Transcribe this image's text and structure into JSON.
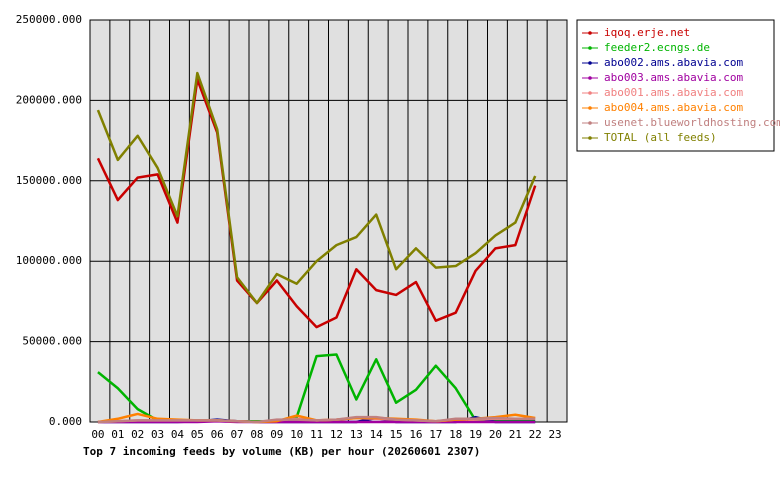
{
  "chart_data": {
    "type": "line",
    "title": "Top 7 incoming feeds by volume (KB) per hour (20260601 2307)",
    "categories": [
      "00",
      "01",
      "02",
      "03",
      "04",
      "05",
      "06",
      "07",
      "08",
      "09",
      "10",
      "11",
      "12",
      "13",
      "14",
      "15",
      "16",
      "17",
      "18",
      "19",
      "20",
      "21",
      "22",
      "23"
    ],
    "ylim": [
      0,
      250000
    ],
    "yticks": [
      {
        "value": 0,
        "label": "0.000"
      },
      {
        "value": 50000,
        "label": "50000.000"
      },
      {
        "value": 100000,
        "label": "100000.000"
      },
      {
        "value": 150000,
        "label": "150000.000"
      },
      {
        "value": 200000,
        "label": "200000.000"
      },
      {
        "value": 250000,
        "label": "250000.000"
      }
    ],
    "grid": true,
    "legend": "outside-top-right",
    "series": [
      {
        "name": "iqoq.erje.net",
        "color": "#c80000",
        "values": [
          164000,
          138000,
          152000,
          154000,
          124000,
          213000,
          180000,
          88000,
          74000,
          88000,
          72000,
          59000,
          65000,
          95000,
          82000,
          79000,
          87000,
          63000,
          68000,
          94000,
          108000,
          110000,
          147000,
          null
        ]
      },
      {
        "name": "feeder2.ecngs.de",
        "color": "#00b400",
        "values": [
          31000,
          21000,
          8000,
          1000,
          1000,
          500,
          500,
          500,
          500,
          500,
          3000,
          41000,
          42000,
          14000,
          39000,
          12000,
          20000,
          35000,
          21000,
          1000,
          500,
          500,
          500,
          null
        ]
      },
      {
        "name": "abo002.ams.abavia.com",
        "color": "#000090",
        "values": [
          0,
          0,
          0,
          0,
          0,
          500,
          1500,
          500,
          0,
          0,
          0,
          0,
          0,
          0,
          2500,
          0,
          0,
          0,
          0,
          3000,
          0,
          0,
          0,
          null
        ]
      },
      {
        "name": "abo003.ams.abavia.com",
        "color": "#a000a0",
        "values": [
          0,
          0,
          0,
          0,
          0,
          0,
          500,
          0,
          0,
          0,
          0,
          0,
          0,
          0,
          0,
          0,
          0,
          0,
          0,
          0,
          0,
          0,
          0,
          null
        ]
      },
      {
        "name": "abo001.ams.abavia.com",
        "color": "#f08080",
        "values": [
          0,
          500,
          1000,
          1000,
          1000,
          1000,
          1000,
          500,
          0,
          1000,
          2000,
          1000,
          1500,
          2500,
          2000,
          1500,
          1000,
          500,
          1500,
          1500,
          2000,
          2000,
          2000,
          null
        ]
      },
      {
        "name": "abo004.ams.abavia.com",
        "color": "#ff8000",
        "values": [
          0,
          2000,
          5000,
          2000,
          1500,
          1000,
          1000,
          500,
          0,
          500,
          4000,
          1000,
          1500,
          2500,
          2500,
          2000,
          1500,
          500,
          1500,
          2000,
          3000,
          4500,
          2500,
          null
        ]
      },
      {
        "name": "usenet.blueworldhosting.com",
        "color": "#c08080",
        "values": [
          0,
          500,
          1000,
          1000,
          1000,
          1000,
          1000,
          500,
          0,
          1500,
          1500,
          1000,
          1500,
          3000,
          3000,
          1500,
          1000,
          500,
          2000,
          2000,
          2500,
          2000,
          2000,
          null
        ]
      },
      {
        "name": "TOTAL (all feeds)",
        "color": "#808000",
        "values": [
          194000,
          163000,
          178000,
          158000,
          128000,
          217000,
          182000,
          90000,
          74000,
          92000,
          86000,
          100000,
          110000,
          115000,
          129000,
          95000,
          108000,
          96000,
          97000,
          105000,
          116000,
          124000,
          153000,
          null
        ]
      }
    ]
  }
}
